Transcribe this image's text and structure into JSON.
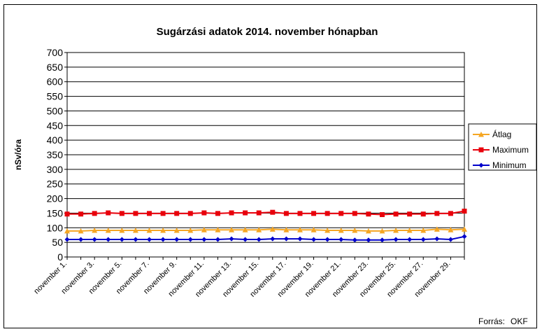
{
  "chart_data": {
    "type": "line",
    "title": "Sugárzási adatok 2014. november hónapban",
    "ylabel": "nSv/óra",
    "xlabel": "",
    "ylim": [
      0,
      700
    ],
    "yticks": [
      0,
      50,
      100,
      150,
      200,
      250,
      300,
      350,
      400,
      450,
      500,
      550,
      600,
      650,
      700
    ],
    "grid": true,
    "legend_position": "right",
    "x": [
      "november 1.",
      "november 2.",
      "november 3.",
      "november 4.",
      "november 5.",
      "november 6.",
      "november 7.",
      "november 8.",
      "november 9.",
      "november 10.",
      "november 11.",
      "november 12.",
      "november 13.",
      "november 14.",
      "november 15.",
      "november 16.",
      "november 17.",
      "november 18.",
      "november 19.",
      "november 20.",
      "november 21.",
      "november 22.",
      "november 23.",
      "november 24.",
      "november 25.",
      "november 26.",
      "november 27.",
      "november 28.",
      "november 29.",
      "november 30."
    ],
    "xtick_labels": [
      "november 1.",
      "november 3.",
      "november 5.",
      "november 7.",
      "november 9.",
      "november 11.",
      "november 13.",
      "november 15.",
      "november 17.",
      "november 19.",
      "november 21.",
      "november 23.",
      "november 25.",
      "november 27.",
      "november 29."
    ],
    "series": [
      {
        "name": "Átlag",
        "color": "#F5A623",
        "marker": "triangle",
        "values": [
          89,
          89,
          91,
          91,
          91,
          91,
          91,
          91,
          91,
          91,
          93,
          93,
          93,
          93,
          93,
          95,
          93,
          93,
          93,
          91,
          91,
          91,
          89,
          89,
          91,
          91,
          91,
          95,
          93,
          95
        ]
      },
      {
        "name": "Maximum",
        "color": "#E8000B",
        "marker": "square",
        "values": [
          147,
          147,
          149,
          151,
          149,
          149,
          149,
          149,
          149,
          149,
          151,
          149,
          151,
          151,
          151,
          153,
          149,
          149,
          149,
          149,
          149,
          149,
          147,
          145,
          147,
          147,
          147,
          149,
          149,
          157
        ]
      },
      {
        "name": "Minimum",
        "color": "#0000CC",
        "marker": "diamond",
        "values": [
          60,
          60,
          60,
          60,
          60,
          60,
          60,
          60,
          60,
          60,
          60,
          60,
          62,
          60,
          60,
          62,
          62,
          62,
          60,
          60,
          60,
          58,
          58,
          58,
          60,
          60,
          60,
          62,
          60,
          70
        ]
      }
    ]
  },
  "source_label": "Forrás:",
  "source_value": "OKF"
}
